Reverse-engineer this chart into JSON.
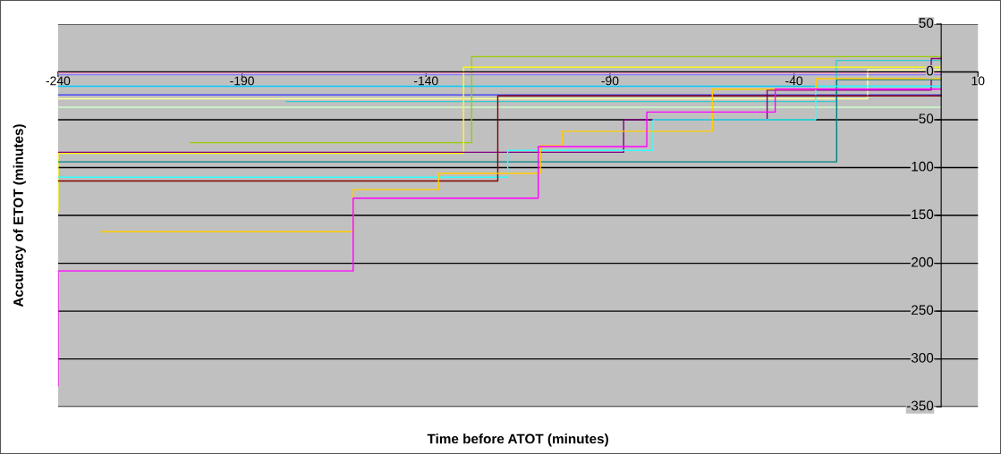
{
  "chart_data": {
    "type": "step",
    "xlabel": "Time before ATOT (minutes)",
    "ylabel": "Accuracy of ETOT (minutes)",
    "xlim": [
      -240,
      10
    ],
    "xticks": [
      -240,
      -190,
      -140,
      -90,
      -40,
      10
    ],
    "ylim": [
      -350,
      50
    ],
    "yticks": [
      50,
      0,
      {
        "value": -50,
        "label": "50"
      },
      {
        "value": -100,
        "label": "100"
      },
      {
        "value": -150,
        "label": "150"
      },
      {
        "value": -200,
        "label": "200"
      },
      {
        "value": -250,
        "label": "250"
      },
      {
        "value": -300,
        "label": "300"
      },
      -350
    ],
    "grid": "y",
    "legend": false,
    "series": [
      {
        "color": "#ff99cc",
        "x": [
          -240,
          0
        ],
        "values": [
          -1,
          -1
        ]
      },
      {
        "color": "#8080ff",
        "x": [
          -240,
          0
        ],
        "values": [
          -3,
          -3
        ]
      },
      {
        "color": "#00ccff",
        "x": [
          -240,
          0
        ],
        "values": [
          -15,
          -15
        ]
      },
      {
        "color": "#3333ff",
        "x": [
          -240,
          0
        ],
        "values": [
          -24,
          -24
        ]
      },
      {
        "color": "#ffff99",
        "x": [
          -240,
          -20,
          0
        ],
        "values": [
          -28,
          2,
          2
        ]
      },
      {
        "color": "#33cccc",
        "x": [
          -178,
          -28.5,
          0
        ],
        "values": [
          -31,
          12,
          12
        ]
      },
      {
        "color": "#ccffcc",
        "x": [
          -240,
          0
        ],
        "values": [
          -37,
          -37
        ]
      },
      {
        "color": "#99cc00",
        "x": [
          -204,
          -127.6,
          0
        ],
        "values": [
          -74,
          16,
          16
        ]
      },
      {
        "color": "#ffff00",
        "x": [
          -240,
          -240,
          -129.8,
          0
        ],
        "values": [
          -146,
          -85,
          5,
          5
        ]
      },
      {
        "color": "#800080",
        "x": [
          -240,
          -86.3,
          -47.3,
          -2.7,
          0
        ],
        "values": [
          -84,
          -50,
          -19,
          14,
          14
        ]
      },
      {
        "color": "#008080",
        "x": [
          -240,
          -28.4,
          0
        ],
        "values": [
          -94,
          -8,
          -8
        ]
      },
      {
        "color": "#33ffff",
        "x": [
          -240,
          -117.8,
          -78.3,
          -34.1,
          0
        ],
        "values": [
          -110,
          -82,
          -50,
          -15,
          -15
        ]
      },
      {
        "color": "#800000",
        "x": [
          -240,
          -120.5,
          0
        ],
        "values": [
          -114,
          -25,
          -25
        ]
      },
      {
        "color": "#ffcc00",
        "x": [
          -228.3,
          -159.8,
          -136.6,
          -108.9,
          -103,
          -62.2,
          -34,
          0
        ],
        "values": [
          -167,
          -123,
          -106,
          -77,
          -62,
          -18,
          -7,
          -7
        ]
      },
      {
        "color": "#ff00ff",
        "x": [
          -240,
          -240,
          -159.8,
          -109.5,
          -80,
          -45.1,
          0
        ],
        "values": [
          -328,
          -208,
          -132,
          -78,
          -42,
          -18,
          -18
        ]
      }
    ]
  }
}
